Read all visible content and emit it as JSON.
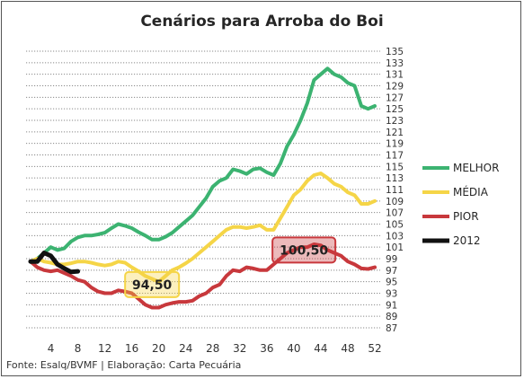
{
  "chart_data": {
    "type": "line",
    "title": "Cenários para Arroba do Boi",
    "source_note": "Fonte: Esalq/BVMF | Elaboração: Carta Pecuária",
    "xlabel": "",
    "ylabel": "",
    "xlim": [
      1,
      52
    ],
    "ylim": [
      87,
      135
    ],
    "x_ticks": [
      4,
      8,
      12,
      16,
      20,
      24,
      28,
      32,
      36,
      40,
      44,
      48,
      52
    ],
    "y_ticks": [
      87,
      89,
      91,
      93,
      95,
      97,
      99,
      101,
      103,
      105,
      107,
      109,
      111,
      113,
      115,
      117,
      119,
      121,
      123,
      125,
      127,
      129,
      131,
      133,
      135
    ],
    "y_axis_side": "right",
    "grid": "horizontal dotted",
    "legend_position": "right",
    "series": [
      {
        "name": "MELHOR",
        "color": "#3cb371",
        "x": [
          1,
          2,
          3,
          4,
          5,
          6,
          7,
          8,
          9,
          10,
          11,
          12,
          13,
          14,
          15,
          16,
          17,
          18,
          19,
          20,
          21,
          22,
          23,
          24,
          25,
          26,
          27,
          28,
          29,
          30,
          31,
          32,
          33,
          34,
          35,
          36,
          37,
          38,
          39,
          40,
          41,
          42,
          43,
          44,
          45,
          46,
          47,
          48,
          49,
          50,
          51,
          52
        ],
        "values": [
          98.5,
          99,
          100,
          101,
          100.5,
          100.8,
          102,
          102.7,
          103,
          103,
          103.2,
          103.5,
          104.3,
          105,
          104.7,
          104.3,
          103.6,
          103,
          102.3,
          102.3,
          102.8,
          103.5,
          104.5,
          105.5,
          106.5,
          108,
          109.5,
          111.5,
          112.5,
          113,
          114.5,
          114.2,
          113.7,
          114.5,
          114.7,
          114,
          113.5,
          115.5,
          118.5,
          120.5,
          123,
          126,
          130,
          131,
          132,
          131,
          130.5,
          129.5,
          129,
          125.5,
          125,
          125.5
        ]
      },
      {
        "name": "MÉDIA",
        "color": "#f5d547",
        "x": [
          1,
          2,
          3,
          4,
          5,
          6,
          7,
          8,
          9,
          10,
          11,
          12,
          13,
          14,
          15,
          16,
          17,
          18,
          19,
          20,
          21,
          22,
          23,
          24,
          25,
          26,
          27,
          28,
          29,
          30,
          31,
          32,
          33,
          34,
          35,
          36,
          37,
          38,
          39,
          40,
          41,
          42,
          43,
          44,
          45,
          46,
          47,
          48,
          49,
          50,
          51,
          52
        ],
        "values": [
          98.5,
          99,
          98.5,
          98.3,
          98,
          98,
          98.2,
          98.5,
          98.5,
          98.3,
          98,
          97.8,
          98,
          98.5,
          98.3,
          97.5,
          96.8,
          96,
          95.5,
          95,
          96,
          97,
          97.5,
          98.2,
          99,
          100,
          101,
          102,
          103,
          104,
          104.5,
          104.5,
          104.3,
          104.5,
          104.8,
          104,
          104,
          106,
          108,
          110,
          111,
          112.5,
          113.5,
          113.8,
          113,
          112,
          111.5,
          110.5,
          110,
          108.5,
          108.5,
          109
        ]
      },
      {
        "name": "PIOR",
        "color": "#c8383c",
        "x": [
          1,
          2,
          3,
          4,
          5,
          6,
          7,
          8,
          9,
          10,
          11,
          12,
          13,
          14,
          15,
          16,
          17,
          18,
          19,
          20,
          21,
          22,
          23,
          24,
          25,
          26,
          27,
          28,
          29,
          30,
          31,
          32,
          33,
          34,
          35,
          36,
          37,
          38,
          39,
          40,
          41,
          42,
          43,
          44,
          45,
          46,
          47,
          48,
          49,
          50,
          51,
          52
        ],
        "values": [
          98.5,
          97.5,
          97,
          96.8,
          97,
          96.5,
          96,
          95.3,
          95,
          94,
          93.3,
          93,
          93,
          93.5,
          93.3,
          93,
          92,
          91,
          90.5,
          90.5,
          91,
          91.3,
          91.5,
          91.5,
          91.7,
          92.5,
          93,
          94,
          94.5,
          96,
          97,
          96.8,
          97.5,
          97.3,
          97,
          97,
          98,
          99,
          100,
          100.5,
          101,
          101,
          101.5,
          101.3,
          100.5,
          100,
          99.5,
          98.5,
          98,
          97.3,
          97.2,
          97.5
        ]
      },
      {
        "name": "2012",
        "color": "#111111",
        "x": [
          1,
          2,
          3,
          4,
          5,
          6,
          7,
          8
        ],
        "values": [
          98.5,
          98.5,
          100,
          99.5,
          98,
          97.3,
          96.7,
          96.8
        ]
      }
    ],
    "annotations": [
      {
        "text": "94,50",
        "x": 19,
        "y": 94.5,
        "color": "#f5d547"
      },
      {
        "text": "100,50",
        "x": 41.5,
        "y": 100.5,
        "color": "#c8383c"
      }
    ]
  }
}
